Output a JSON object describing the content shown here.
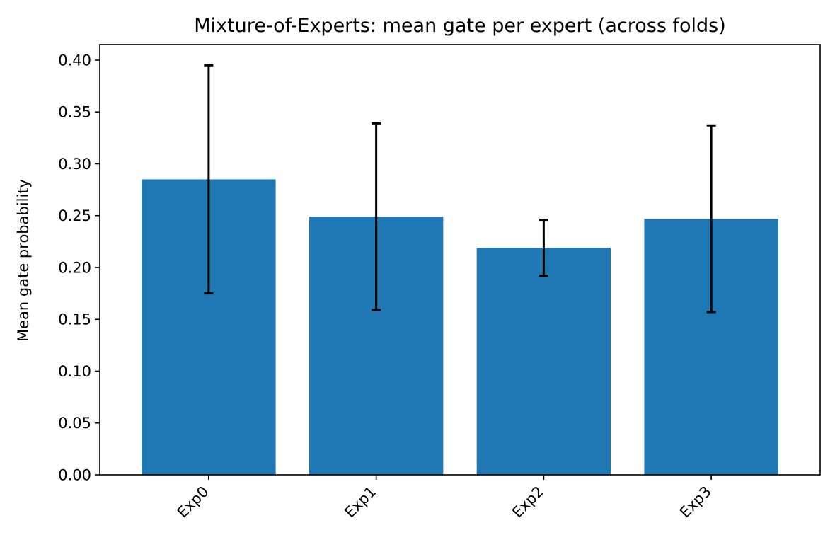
{
  "chart_data": {
    "type": "bar",
    "title": "Mixture-of-Experts: mean gate per expert (across folds)",
    "xlabel": "",
    "ylabel": "Mean gate probability",
    "categories": [
      "Exp0",
      "Exp1",
      "Exp2",
      "Exp3"
    ],
    "values": [
      0.285,
      0.249,
      0.219,
      0.247
    ],
    "error": [
      0.11,
      0.09,
      0.027,
      0.09
    ],
    "ylim": [
      0,
      0.415
    ],
    "yticks": [
      "0.00",
      "0.05",
      "0.10",
      "0.15",
      "0.20",
      "0.25",
      "0.30",
      "0.35",
      "0.40"
    ],
    "ytick_values": [
      0,
      0.05,
      0.1,
      0.15,
      0.2,
      0.25,
      0.3,
      0.35,
      0.4
    ],
    "bar_color": "#1f77b4",
    "errorbar_color": "#000000",
    "grid": false,
    "legend": "none"
  }
}
